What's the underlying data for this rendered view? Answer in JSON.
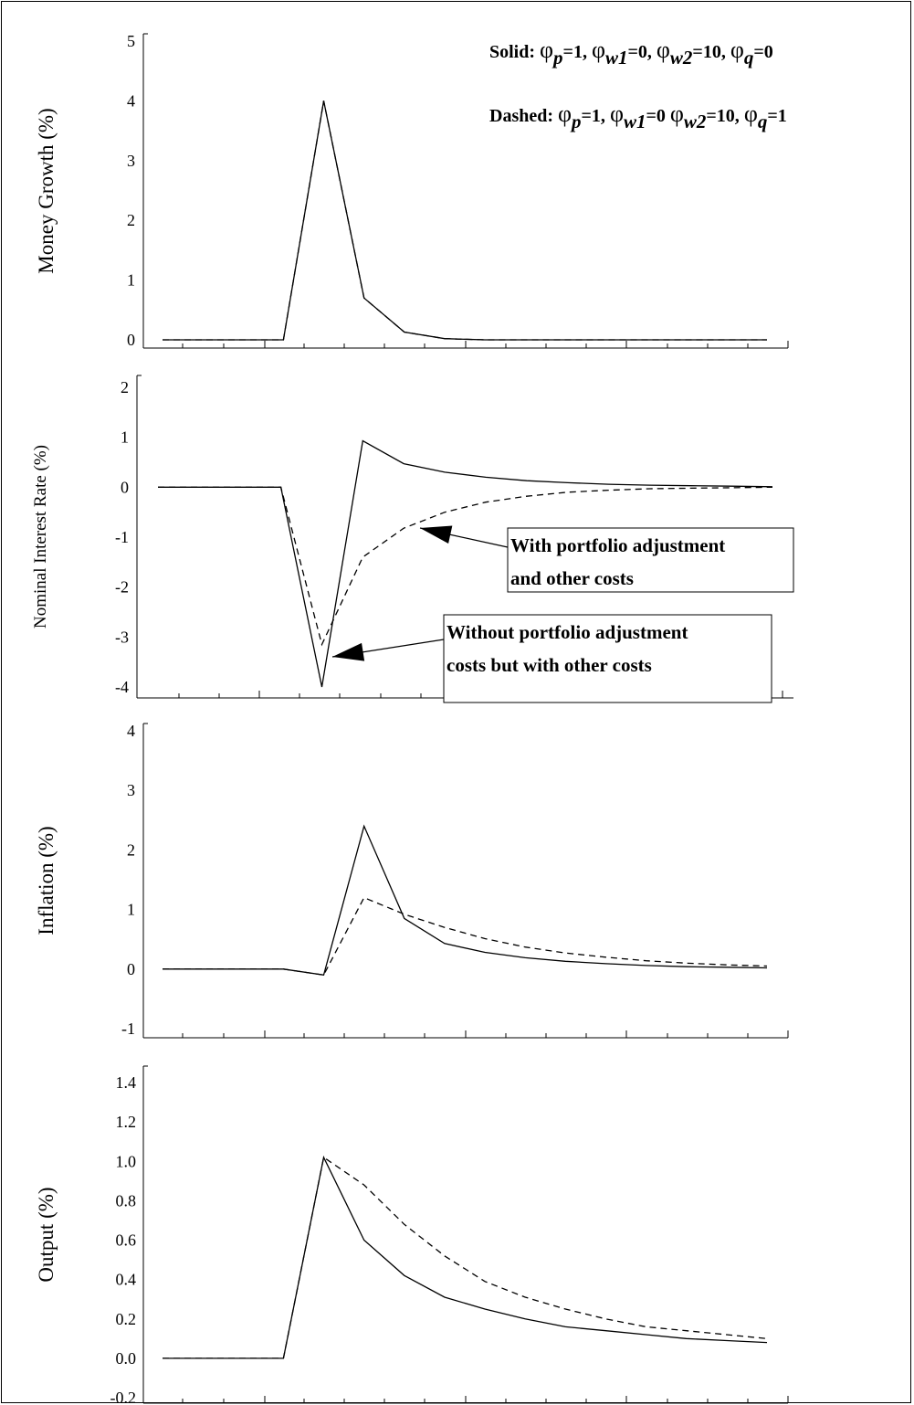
{
  "legend": {
    "solid": {
      "prefix": "Solid: ",
      "parts": [
        {
          "sym": "φ",
          "sub": "p",
          "val": "=1, "
        },
        {
          "sym": "φ",
          "sub": "w1",
          "val": "=0, "
        },
        {
          "sym": "φ",
          "sub": "w2",
          "val": "=10, "
        },
        {
          "sym": "φ",
          "sub": "q",
          "val": "=0"
        }
      ]
    },
    "dashed": {
      "prefix": "Dashed: ",
      "parts": [
        {
          "sym": "φ",
          "sub": "p",
          "val": "=1, "
        },
        {
          "sym": "φ",
          "sub": "w1",
          "val": "=0 "
        },
        {
          "sym": "φ",
          "sub": "w2",
          "val": "=10, "
        },
        {
          "sym": "φ",
          "sub": "q",
          "val": "=1"
        }
      ]
    }
  },
  "annotations": {
    "with": {
      "lines": [
        "With portfolio adjustment",
        " and other costs"
      ]
    },
    "without": {
      "lines": [
        "Without portfolio adjustment",
        "costs but with other costs"
      ]
    }
  },
  "styles": {
    "solid_color": "#000000",
    "dashed_color": "#000000"
  },
  "chart_data": [
    {
      "type": "line",
      "ylabel": "Money Growth (%)",
      "ylim": [
        0,
        5
      ],
      "yticks": [
        "0",
        "1",
        "2",
        "3",
        "4",
        "5"
      ],
      "x": [
        0,
        1,
        2,
        3,
        4,
        5,
        6,
        7,
        8,
        9,
        10,
        11,
        12,
        13,
        14,
        15
      ],
      "series": [
        {
          "style": "solid",
          "values": [
            0,
            0,
            0,
            0,
            4.0,
            0.7,
            0.13,
            0.02,
            0,
            0,
            0,
            0,
            0,
            0,
            0,
            0
          ]
        },
        {
          "style": "dashed",
          "values": [
            0,
            0,
            0,
            0,
            4.0,
            0.7,
            0.13,
            0.02,
            0,
            0,
            0,
            0,
            0,
            0,
            0,
            0
          ]
        }
      ]
    },
    {
      "type": "line",
      "ylabel": "Nominal Interest Rate (%)",
      "ylim": [
        -4,
        2
      ],
      "yticks": [
        "-4",
        "-3",
        "-2",
        "-1",
        "0",
        "1",
        "2"
      ],
      "x": [
        0,
        1,
        2,
        3,
        4,
        5,
        6,
        7,
        8,
        9,
        10,
        11,
        12,
        13,
        14,
        15
      ],
      "series": [
        {
          "style": "solid",
          "values": [
            0,
            0,
            0,
            0,
            -4.0,
            0.93,
            0.47,
            0.3,
            0.2,
            0.13,
            0.09,
            0.06,
            0.04,
            0.03,
            0.02,
            0.01
          ]
        },
        {
          "style": "dashed",
          "values": [
            0,
            0,
            0,
            0,
            -3.15,
            -1.4,
            -0.82,
            -0.5,
            -0.3,
            -0.18,
            -0.1,
            -0.06,
            -0.03,
            -0.02,
            -0.01,
            0
          ]
        }
      ]
    },
    {
      "type": "line",
      "ylabel": "Inflation (%)",
      "ylim": [
        -1,
        4
      ],
      "yticks": [
        "-1",
        "0",
        "1",
        "2",
        "3",
        "4"
      ],
      "x": [
        0,
        1,
        2,
        3,
        4,
        5,
        6,
        7,
        8,
        9,
        10,
        11,
        12,
        13,
        14,
        15
      ],
      "series": [
        {
          "style": "solid",
          "values": [
            0,
            0,
            0,
            0,
            -0.1,
            2.4,
            0.85,
            0.43,
            0.28,
            0.19,
            0.13,
            0.09,
            0.06,
            0.04,
            0.03,
            0.02
          ]
        },
        {
          "style": "dashed",
          "values": [
            0,
            0,
            0,
            0,
            -0.1,
            1.2,
            0.92,
            0.7,
            0.51,
            0.37,
            0.27,
            0.2,
            0.14,
            0.1,
            0.07,
            0.05
          ]
        }
      ]
    },
    {
      "type": "line",
      "ylabel": "Output (%)",
      "ylim": [
        -0.2,
        1.4
      ],
      "yticks": [
        "-0.2",
        "0.0",
        "0.2",
        "0.4",
        "0.6",
        "0.8",
        "1.0",
        "1.2",
        "1.4"
      ],
      "x": [
        0,
        1,
        2,
        3,
        4,
        5,
        6,
        7,
        8,
        9,
        10,
        11,
        12,
        13,
        14,
        15
      ],
      "series": [
        {
          "style": "solid",
          "values": [
            0,
            0,
            0,
            0,
            1.02,
            0.6,
            0.42,
            0.31,
            0.25,
            0.2,
            0.16,
            0.14,
            0.12,
            0.1,
            0.09,
            0.08
          ]
        },
        {
          "style": "dashed",
          "values": [
            0,
            0,
            0,
            0,
            1.02,
            0.88,
            0.68,
            0.52,
            0.39,
            0.31,
            0.25,
            0.2,
            0.16,
            0.14,
            0.12,
            0.1
          ]
        }
      ]
    }
  ]
}
